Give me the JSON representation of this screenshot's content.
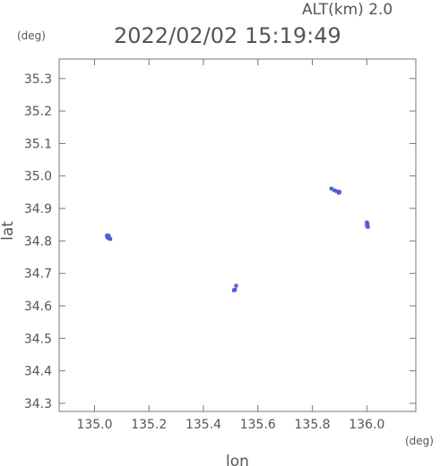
{
  "header": {
    "altitude_label": "ALT(km) 2.0",
    "timestamp": "2022/02/02 15:19:49"
  },
  "chart_data": {
    "type": "scatter",
    "xlabel": "lon",
    "ylabel": "lat",
    "x_unit": "(deg)",
    "y_unit": "(deg)",
    "xlim": [
      134.87,
      136.18
    ],
    "ylim": [
      34.275,
      35.36
    ],
    "x_ticks": [
      135.0,
      135.2,
      135.4,
      135.6,
      135.8,
      136.0
    ],
    "x_tick_labels": [
      "135.0",
      "135.2",
      "135.4",
      "135.6",
      "135.8",
      "136.0"
    ],
    "y_ticks": [
      34.3,
      34.4,
      34.5,
      34.6,
      34.7,
      34.8,
      34.9,
      35.0,
      35.1,
      35.2,
      35.3
    ],
    "y_tick_labels": [
      "34.3",
      "34.4",
      "34.5",
      "34.6",
      "34.7",
      "34.8",
      "34.9",
      "35.0",
      "35.1",
      "35.2",
      "35.3"
    ],
    "grid": false,
    "marker_color": "#4a5cf0",
    "points": [
      {
        "x": 135.045,
        "y": 34.816
      },
      {
        "x": 135.05,
        "y": 34.817
      },
      {
        "x": 135.053,
        "y": 34.813
      },
      {
        "x": 135.048,
        "y": 34.811
      },
      {
        "x": 135.058,
        "y": 34.806
      },
      {
        "x": 135.052,
        "y": 34.808
      },
      {
        "x": 135.512,
        "y": 34.648
      },
      {
        "x": 135.516,
        "y": 34.65
      },
      {
        "x": 135.52,
        "y": 34.662
      },
      {
        "x": 135.87,
        "y": 34.961
      },
      {
        "x": 135.88,
        "y": 34.956
      },
      {
        "x": 135.89,
        "y": 34.953
      },
      {
        "x": 135.9,
        "y": 34.951
      },
      {
        "x": 135.897,
        "y": 34.948
      },
      {
        "x": 136.0,
        "y": 34.857
      },
      {
        "x": 136.003,
        "y": 34.852
      },
      {
        "x": 136.0,
        "y": 34.847
      },
      {
        "x": 136.004,
        "y": 34.843
      }
    ]
  }
}
